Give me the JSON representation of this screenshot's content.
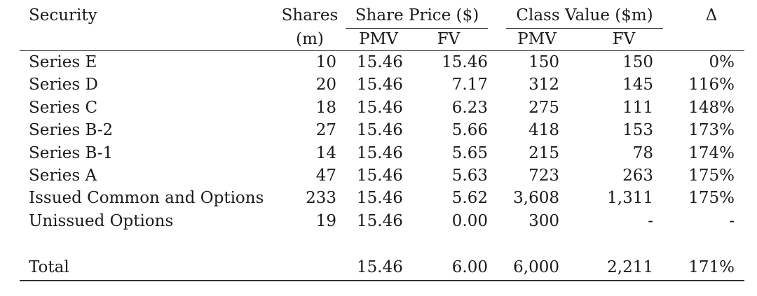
{
  "table": {
    "header": {
      "security": "Security",
      "shares_line1": "Shares",
      "shares_line2": "(m)",
      "share_price": "Share Price ($)",
      "class_value": "Class Value ($m)",
      "delta": "Δ",
      "pmv": "PMV",
      "fv": "FV"
    },
    "rows": [
      {
        "security": "Series E",
        "shares": "10",
        "sp_pmv": "15.46",
        "sp_fv": "15.46",
        "cv_pmv": "150",
        "cv_fv": "150",
        "delta": "0%"
      },
      {
        "security": "Series D",
        "shares": "20",
        "sp_pmv": "15.46",
        "sp_fv": "7.17",
        "cv_pmv": "312",
        "cv_fv": "145",
        "delta": "116%"
      },
      {
        "security": "Series C",
        "shares": "18",
        "sp_pmv": "15.46",
        "sp_fv": "6.23",
        "cv_pmv": "275",
        "cv_fv": "111",
        "delta": "148%"
      },
      {
        "security": "Series B-2",
        "shares": "27",
        "sp_pmv": "15.46",
        "sp_fv": "5.66",
        "cv_pmv": "418",
        "cv_fv": "153",
        "delta": "173%"
      },
      {
        "security": "Series B-1",
        "shares": "14",
        "sp_pmv": "15.46",
        "sp_fv": "5.65",
        "cv_pmv": "215",
        "cv_fv": "78",
        "delta": "174%"
      },
      {
        "security": "Series A",
        "shares": "47",
        "sp_pmv": "15.46",
        "sp_fv": "5.63",
        "cv_pmv": "723",
        "cv_fv": "263",
        "delta": "175%"
      },
      {
        "security": "Issued Common and Options",
        "shares": "233",
        "sp_pmv": "15.46",
        "sp_fv": "5.62",
        "cv_pmv": "3,608",
        "cv_fv": "1,311",
        "delta": "175%"
      },
      {
        "security": "Unissued Options",
        "shares": "19",
        "sp_pmv": "15.46",
        "sp_fv": "0.00",
        "cv_pmv": "300",
        "cv_fv": "-",
        "delta": "-"
      }
    ],
    "total": {
      "security": "Total",
      "shares": "",
      "sp_pmv": "15.46",
      "sp_fv": "6.00",
      "cv_pmv": "6,000",
      "cv_fv": "2,211",
      "delta": "171%"
    }
  }
}
